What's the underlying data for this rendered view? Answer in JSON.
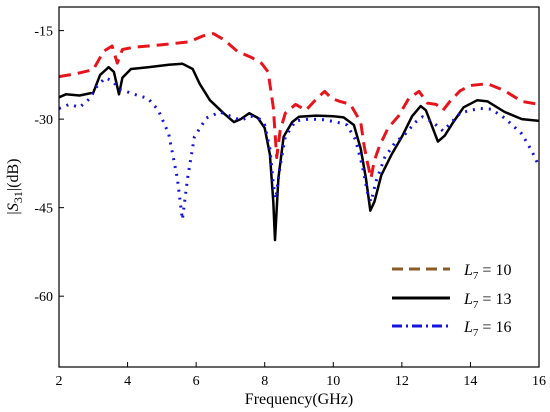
{
  "chart_data": {
    "type": "line",
    "title": "",
    "xlabel": "Frequency(GHz)",
    "ylabel_parts": {
      "base": "|S",
      "sub": "31",
      "unit": "|(dB)"
    },
    "xlim": [
      2,
      16
    ],
    "ylim": [
      -72,
      -11
    ],
    "x_ticks": [
      2,
      4,
      6,
      8,
      10,
      12,
      14,
      16
    ],
    "y_ticks": [
      -15,
      -30,
      -45,
      -60
    ],
    "legend_position": "bottom-right",
    "legend_label_parts": {
      "var": "L",
      "sub": "7",
      "eq": " = "
    },
    "series": [
      {
        "name": "10",
        "color": "#e8141c",
        "style": "dashed",
        "points": [
          [
            2,
            -22.8
          ],
          [
            2.5,
            -22.3
          ],
          [
            3,
            -21.6
          ],
          [
            3.3,
            -18.5
          ],
          [
            3.55,
            -17.6
          ],
          [
            3.7,
            -20.5
          ],
          [
            3.85,
            -18.2
          ],
          [
            4.2,
            -17.8
          ],
          [
            5.0,
            -17.4
          ],
          [
            5.8,
            -16.9
          ],
          [
            6.2,
            -15.9
          ],
          [
            6.5,
            -15.5
          ],
          [
            6.8,
            -16.5
          ],
          [
            7.2,
            -18.5
          ],
          [
            7.6,
            -19.5
          ],
          [
            7.9,
            -20.5
          ],
          [
            8.1,
            -22.0
          ],
          [
            8.25,
            -28.0
          ],
          [
            8.35,
            -36.5
          ],
          [
            8.45,
            -32.0
          ],
          [
            8.6,
            -29.0
          ],
          [
            8.9,
            -27.5
          ],
          [
            9.2,
            -28.5
          ],
          [
            9.55,
            -26.3
          ],
          [
            9.75,
            -25.3
          ],
          [
            9.95,
            -26.5
          ],
          [
            10.2,
            -27.0
          ],
          [
            10.5,
            -27.5
          ],
          [
            10.8,
            -30.5
          ],
          [
            10.9,
            -34.5
          ],
          [
            11.0,
            -37.5
          ],
          [
            11.1,
            -40.0
          ],
          [
            11.2,
            -37.0
          ],
          [
            11.35,
            -34.5
          ],
          [
            11.6,
            -31.5
          ],
          [
            11.9,
            -29.5
          ],
          [
            12.2,
            -26.5
          ],
          [
            12.5,
            -25.3
          ],
          [
            12.75,
            -27.3
          ],
          [
            13.0,
            -27.5
          ],
          [
            13.2,
            -28.5
          ],
          [
            13.4,
            -27.0
          ],
          [
            13.7,
            -25.2
          ],
          [
            14.0,
            -24.3
          ],
          [
            14.5,
            -24.0
          ],
          [
            15.0,
            -25.2
          ],
          [
            15.5,
            -27.0
          ],
          [
            16.0,
            -27.5
          ]
        ]
      },
      {
        "name": "13",
        "color": "#000000",
        "style": "solid",
        "points": [
          [
            2,
            -26.3
          ],
          [
            2.2,
            -25.8
          ],
          [
            2.6,
            -26.0
          ],
          [
            3.0,
            -25.5
          ],
          [
            3.2,
            -22.5
          ],
          [
            3.45,
            -21.2
          ],
          [
            3.6,
            -22.0
          ],
          [
            3.75,
            -25.8
          ],
          [
            3.85,
            -23.0
          ],
          [
            4.1,
            -21.5
          ],
          [
            4.6,
            -21.2
          ],
          [
            5.2,
            -20.8
          ],
          [
            5.6,
            -20.6
          ],
          [
            5.9,
            -21.5
          ],
          [
            6.1,
            -24.0
          ],
          [
            6.4,
            -26.8
          ],
          [
            6.8,
            -29.0
          ],
          [
            7.1,
            -30.5
          ],
          [
            7.3,
            -30.0
          ],
          [
            7.55,
            -29.0
          ],
          [
            7.8,
            -29.8
          ],
          [
            8.0,
            -31.5
          ],
          [
            8.15,
            -36.0
          ],
          [
            8.25,
            -44.0
          ],
          [
            8.3,
            -50.5
          ],
          [
            8.4,
            -40.0
          ],
          [
            8.55,
            -33.0
          ],
          [
            8.8,
            -30.5
          ],
          [
            9.0,
            -29.6
          ],
          [
            9.5,
            -29.4
          ],
          [
            10.0,
            -29.5
          ],
          [
            10.3,
            -29.7
          ],
          [
            10.6,
            -31.0
          ],
          [
            10.8,
            -35.0
          ],
          [
            10.95,
            -40.0
          ],
          [
            11.08,
            -45.5
          ],
          [
            11.2,
            -44.0
          ],
          [
            11.4,
            -39.5
          ],
          [
            11.7,
            -36.0
          ],
          [
            12.0,
            -33.0
          ],
          [
            12.3,
            -29.5
          ],
          [
            12.55,
            -27.8
          ],
          [
            12.7,
            -28.5
          ],
          [
            12.9,
            -31.5
          ],
          [
            13.05,
            -33.8
          ],
          [
            13.25,
            -32.8
          ],
          [
            13.5,
            -30.5
          ],
          [
            13.8,
            -28.0
          ],
          [
            14.2,
            -26.8
          ],
          [
            14.5,
            -27.0
          ],
          [
            15.0,
            -28.8
          ],
          [
            15.5,
            -30.0
          ],
          [
            16.0,
            -30.3
          ]
        ]
      },
      {
        "name": "16",
        "color": "#1414e0",
        "style": "dashdot",
        "points": [
          [
            2,
            -28.2
          ],
          [
            2.3,
            -27.5
          ],
          [
            2.6,
            -28.0
          ],
          [
            2.9,
            -26.5
          ],
          [
            3.1,
            -24.5
          ],
          [
            3.35,
            -23.0
          ],
          [
            3.55,
            -23.5
          ],
          [
            3.8,
            -25.0
          ],
          [
            4.2,
            -25.8
          ],
          [
            4.6,
            -26.5
          ],
          [
            4.9,
            -28.5
          ],
          [
            5.2,
            -32.5
          ],
          [
            5.45,
            -40.0
          ],
          [
            5.6,
            -47.0
          ],
          [
            5.75,
            -40.0
          ],
          [
            5.95,
            -33.0
          ],
          [
            6.3,
            -29.8
          ],
          [
            6.7,
            -28.8
          ],
          [
            7.0,
            -29.5
          ],
          [
            7.3,
            -30.2
          ],
          [
            7.6,
            -29.5
          ],
          [
            7.85,
            -30.0
          ],
          [
            8.0,
            -31.0
          ],
          [
            8.15,
            -35.0
          ],
          [
            8.25,
            -41.0
          ],
          [
            8.32,
            -43.5
          ],
          [
            8.45,
            -38.0
          ],
          [
            8.6,
            -33.0
          ],
          [
            8.9,
            -30.3
          ],
          [
            9.3,
            -30.0
          ],
          [
            9.7,
            -30.1
          ],
          [
            10.1,
            -30.5
          ],
          [
            10.4,
            -31.0
          ],
          [
            10.65,
            -33.5
          ],
          [
            10.85,
            -38.0
          ],
          [
            11.0,
            -42.5
          ],
          [
            11.1,
            -44.0
          ],
          [
            11.25,
            -40.5
          ],
          [
            11.5,
            -36.5
          ],
          [
            11.8,
            -34.0
          ],
          [
            12.1,
            -32.5
          ],
          [
            12.4,
            -30.5
          ],
          [
            12.6,
            -29.6
          ],
          [
            12.9,
            -30.5
          ],
          [
            13.2,
            -32.0
          ],
          [
            13.45,
            -30.5
          ],
          [
            13.7,
            -29.0
          ],
          [
            14.0,
            -28.5
          ],
          [
            14.3,
            -28.2
          ],
          [
            14.6,
            -28.3
          ],
          [
            15.0,
            -29.8
          ],
          [
            15.5,
            -32.5
          ],
          [
            15.8,
            -35.5
          ],
          [
            16.0,
            -38.0
          ]
        ]
      }
    ]
  }
}
